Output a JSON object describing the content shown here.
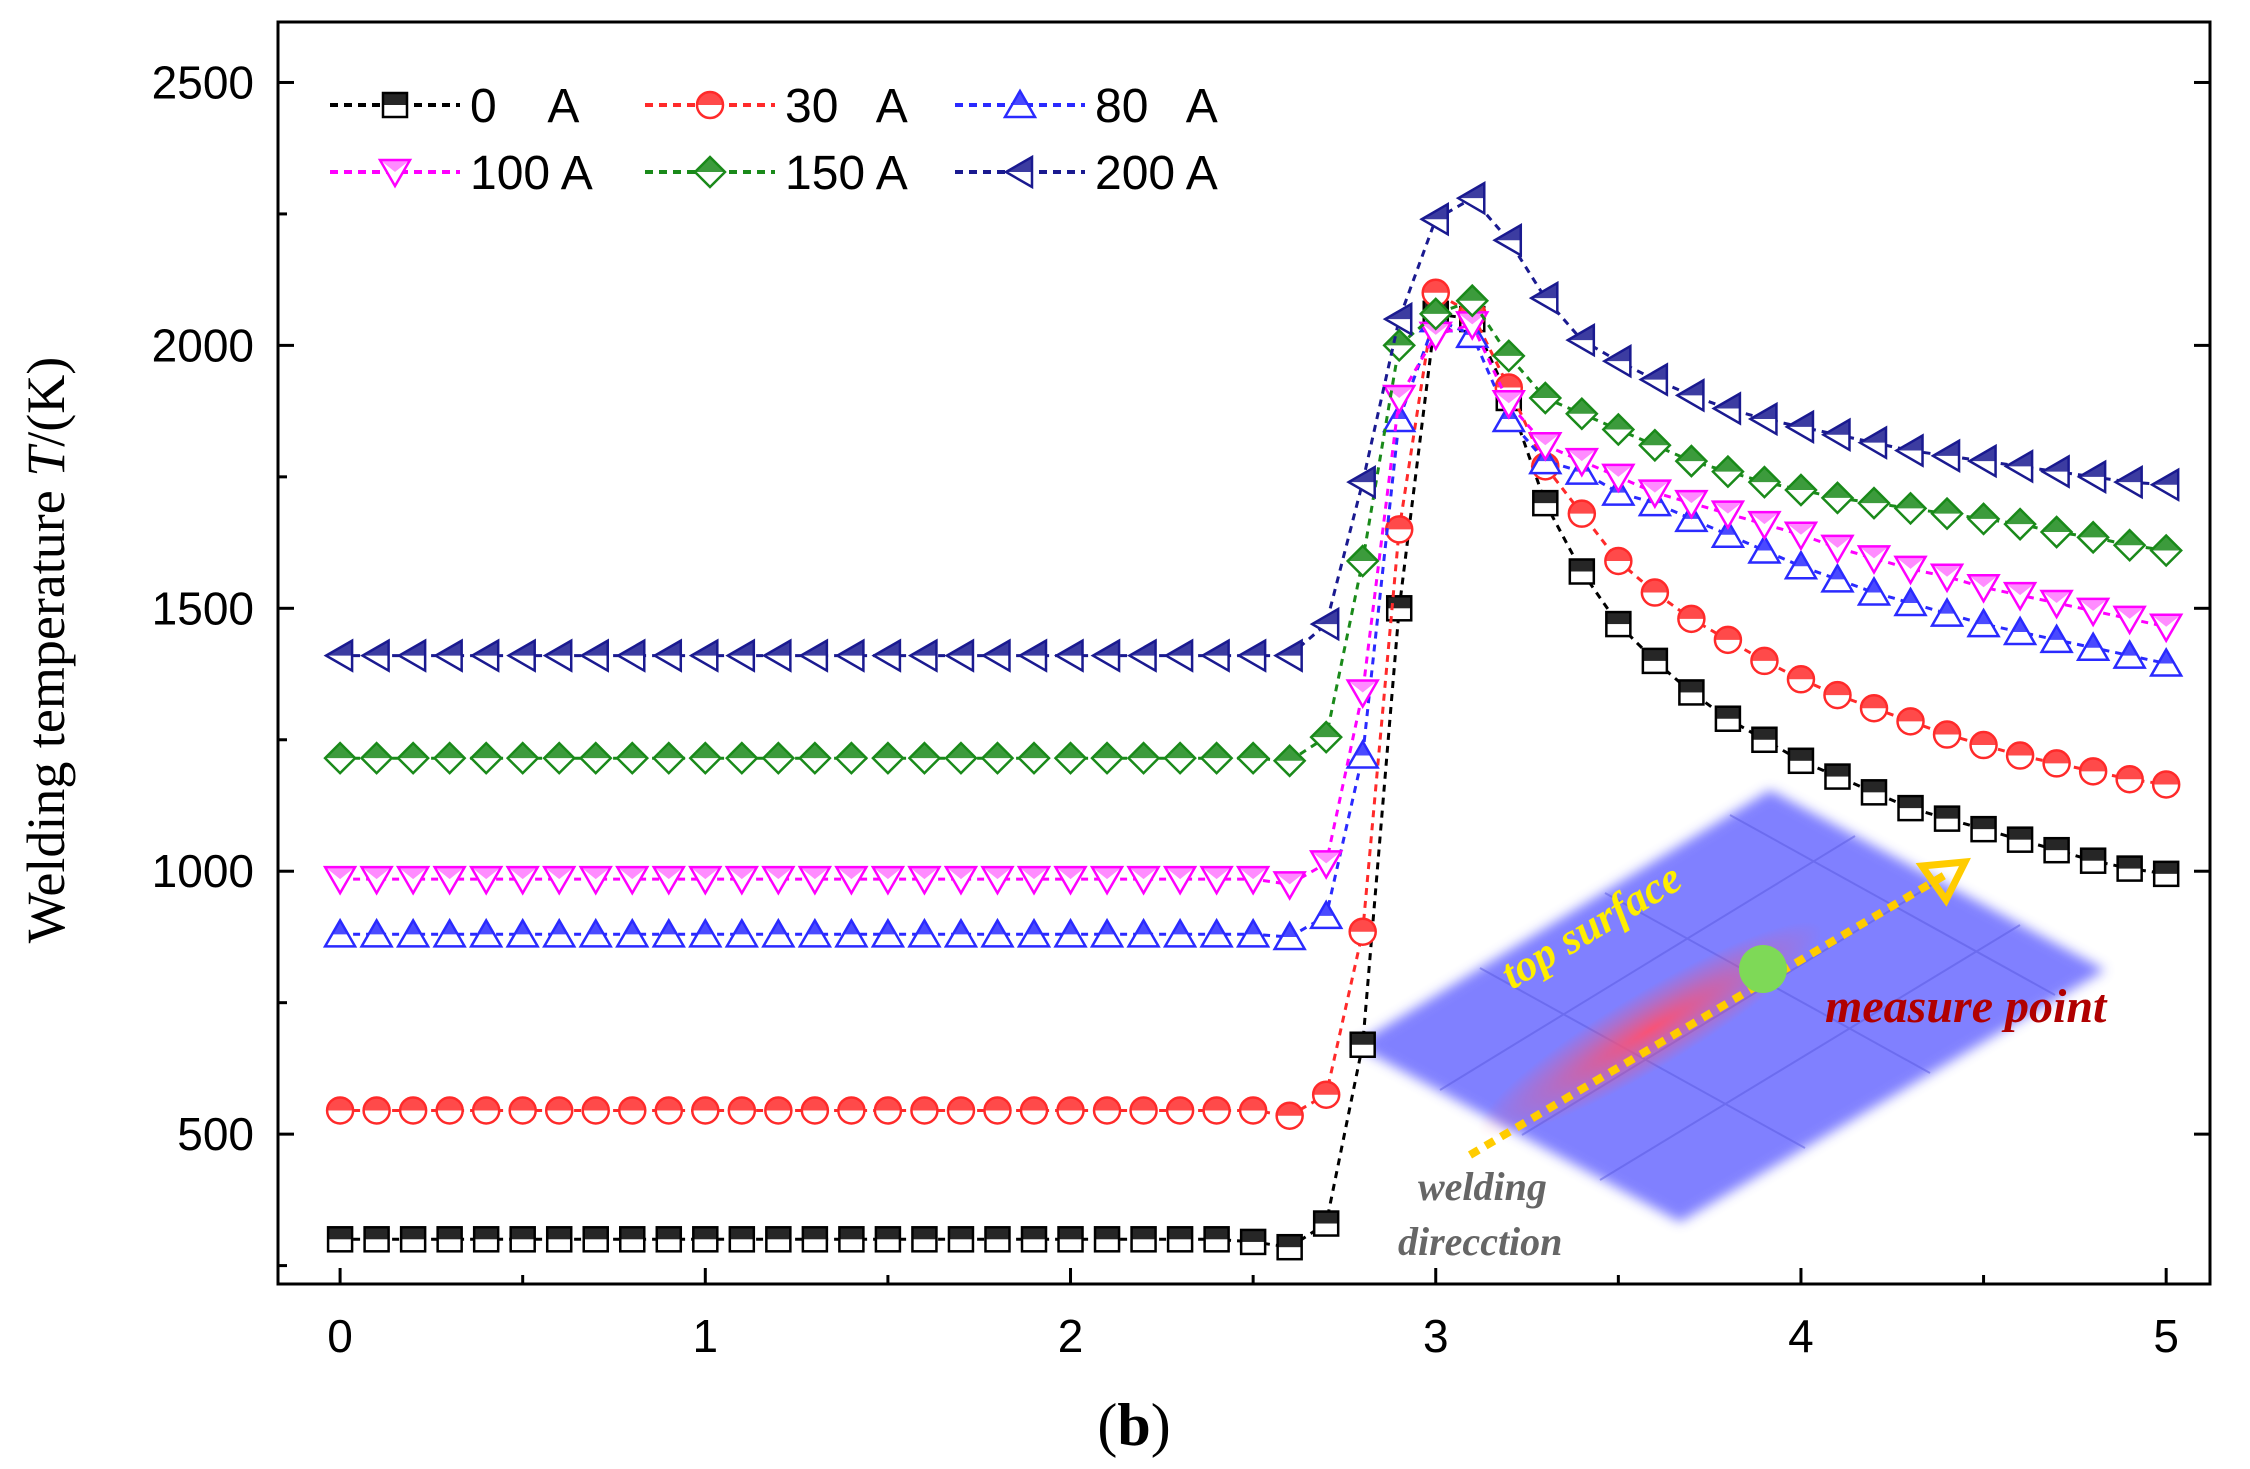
{
  "panel_label": "(b)",
  "colors": {
    "0 A": "#000000",
    "30 A": "#ff2a2a",
    "80 A": "#2a2aff",
    "100 A": "#ff00ff",
    "150 A": "#1a8a1a",
    "200 A": "#1a1a90",
    "inset_plate": "#6b6bff",
    "inset_heat": "#ff4a6a",
    "inset_point": "#7ed957",
    "inset_arrow": "#ffcc00"
  },
  "inset": {
    "top_surface": "top surface",
    "measure_point": "measure point",
    "welding_line1": "welding",
    "welding_line2": "direcction"
  },
  "chart_data": {
    "type": "line",
    "ylabel_prefix": "Welding temperature ",
    "ylabel_var": "T",
    "ylabel_suffix": "/(K)",
    "xlabel": "",
    "xlim": [
      -0.17,
      5.12
    ],
    "ylim": [
      215,
      2615
    ],
    "xticks": [
      0,
      1,
      2,
      3,
      4,
      5
    ],
    "yticks": [
      500,
      1000,
      1500,
      2000,
      2500
    ],
    "legend_position": "top-left",
    "x": [
      0,
      0.1,
      0.2,
      0.3,
      0.4,
      0.5,
      0.6,
      0.7,
      0.8,
      0.9,
      1.0,
      1.1,
      1.2,
      1.3,
      1.4,
      1.5,
      1.6,
      1.7,
      1.8,
      1.9,
      2.0,
      2.1,
      2.2,
      2.3,
      2.4,
      2.5,
      2.6,
      2.7,
      2.8,
      2.9,
      3.0,
      3.1,
      3.2,
      3.3,
      3.4,
      3.5,
      3.6,
      3.7,
      3.8,
      3.9,
      4.0,
      4.1,
      4.2,
      4.3,
      4.4,
      4.5,
      4.6,
      4.7,
      4.8,
      4.9,
      5.0
    ],
    "series": [
      {
        "name": "0    A",
        "marker": "square",
        "values": [
          300,
          300,
          300,
          300,
          300,
          300,
          300,
          300,
          300,
          300,
          300,
          300,
          300,
          300,
          300,
          300,
          300,
          300,
          300,
          300,
          300,
          300,
          300,
          300,
          300,
          295,
          285,
          330,
          670,
          1500,
          2060,
          2050,
          1900,
          1700,
          1570,
          1470,
          1400,
          1340,
          1290,
          1250,
          1210,
          1180,
          1150,
          1120,
          1100,
          1080,
          1060,
          1040,
          1020,
          1005,
          995
        ]
      },
      {
        "name": "30   A",
        "marker": "circle",
        "values": [
          545,
          545,
          545,
          545,
          545,
          545,
          545,
          545,
          545,
          545,
          545,
          545,
          545,
          545,
          545,
          545,
          545,
          545,
          545,
          545,
          545,
          545,
          545,
          545,
          545,
          545,
          535,
          575,
          885,
          1650,
          2100,
          2060,
          1920,
          1770,
          1680,
          1590,
          1530,
          1480,
          1440,
          1400,
          1365,
          1335,
          1310,
          1285,
          1260,
          1240,
          1220,
          1205,
          1190,
          1175,
          1165
        ]
      },
      {
        "name": "80   A",
        "marker": "triangle-up",
        "values": [
          880,
          880,
          880,
          880,
          880,
          880,
          880,
          880,
          880,
          880,
          880,
          880,
          880,
          880,
          880,
          880,
          880,
          880,
          880,
          880,
          880,
          880,
          880,
          880,
          880,
          880,
          875,
          915,
          1220,
          1860,
          2050,
          2020,
          1860,
          1780,
          1760,
          1720,
          1700,
          1670,
          1640,
          1610,
          1580,
          1555,
          1530,
          1510,
          1490,
          1470,
          1455,
          1440,
          1425,
          1410,
          1395
        ]
      },
      {
        "name": "100 A",
        "marker": "triangle-down",
        "values": [
          985,
          985,
          985,
          985,
          985,
          985,
          985,
          985,
          985,
          985,
          985,
          985,
          985,
          985,
          985,
          985,
          985,
          985,
          985,
          985,
          985,
          985,
          985,
          985,
          985,
          985,
          975,
          1015,
          1340,
          1900,
          2020,
          2040,
          1890,
          1810,
          1780,
          1750,
          1720,
          1700,
          1680,
          1660,
          1640,
          1615,
          1595,
          1575,
          1560,
          1540,
          1525,
          1510,
          1495,
          1480,
          1465
        ]
      },
      {
        "name": "150 A",
        "marker": "diamond",
        "values": [
          1215,
          1215,
          1215,
          1215,
          1215,
          1215,
          1215,
          1215,
          1215,
          1215,
          1215,
          1215,
          1215,
          1215,
          1215,
          1215,
          1215,
          1215,
          1215,
          1215,
          1215,
          1215,
          1215,
          1215,
          1215,
          1215,
          1210,
          1255,
          1590,
          2000,
          2060,
          2085,
          1980,
          1900,
          1870,
          1840,
          1810,
          1780,
          1760,
          1740,
          1725,
          1710,
          1700,
          1690,
          1680,
          1670,
          1660,
          1645,
          1635,
          1620,
          1610
        ]
      },
      {
        "name": "200 A",
        "marker": "triangle-left",
        "values": [
          1410,
          1410,
          1410,
          1410,
          1410,
          1410,
          1410,
          1410,
          1410,
          1410,
          1410,
          1410,
          1410,
          1410,
          1410,
          1410,
          1410,
          1410,
          1410,
          1410,
          1410,
          1410,
          1410,
          1410,
          1410,
          1410,
          1410,
          1470,
          1740,
          2050,
          2240,
          2280,
          2200,
          2090,
          2010,
          1970,
          1935,
          1905,
          1880,
          1860,
          1845,
          1830,
          1815,
          1800,
          1790,
          1780,
          1770,
          1760,
          1750,
          1740,
          1735
        ]
      }
    ]
  }
}
